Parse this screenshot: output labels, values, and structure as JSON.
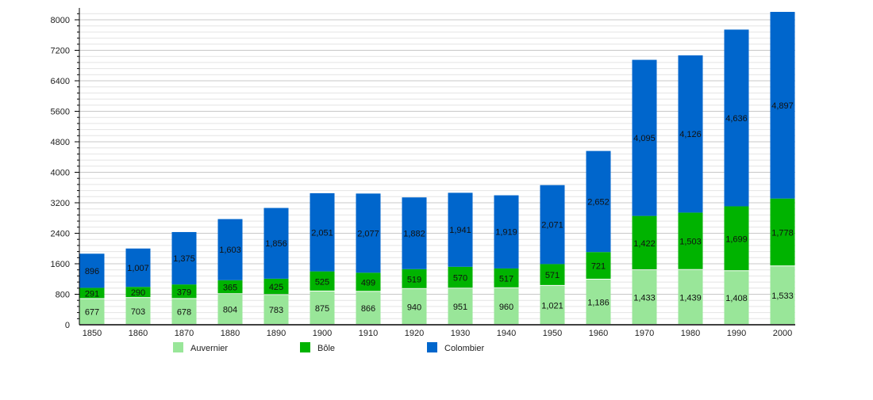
{
  "chart_data": {
    "type": "bar",
    "stacked": true,
    "title": "",
    "xlabel": "",
    "ylabel": "",
    "ylim": [
      0,
      8000
    ],
    "yticks": [
      0,
      800,
      1600,
      2400,
      3200,
      4000,
      4800,
      5600,
      6400,
      7200,
      8000
    ],
    "grid": true,
    "legend_position": "bottom",
    "categories": [
      "1850",
      "1860",
      "1870",
      "1880",
      "1890",
      "1900",
      "1910",
      "1920",
      "1930",
      "1940",
      "1950",
      "1960",
      "1970",
      "1980",
      "1990",
      "2000"
    ],
    "series": [
      {
        "name": "Auvernier",
        "color": "#99e699",
        "values": [
          677,
          703,
          678,
          804,
          783,
          875,
          866,
          940,
          951,
          960,
          1021,
          1186,
          1433,
          1439,
          1408,
          1533
        ]
      },
      {
        "name": "Bôle",
        "color": "#00b300",
        "values": [
          291,
          290,
          379,
          365,
          425,
          525,
          499,
          519,
          570,
          517,
          571,
          721,
          1422,
          1503,
          1699,
          1778
        ]
      },
      {
        "name": "Colombier",
        "color": "#0066cc",
        "values": [
          896,
          1007,
          1375,
          1603,
          1856,
          2051,
          2077,
          1882,
          1941,
          1919,
          2071,
          2652,
          4095,
          4126,
          4636,
          4897
        ]
      }
    ]
  }
}
